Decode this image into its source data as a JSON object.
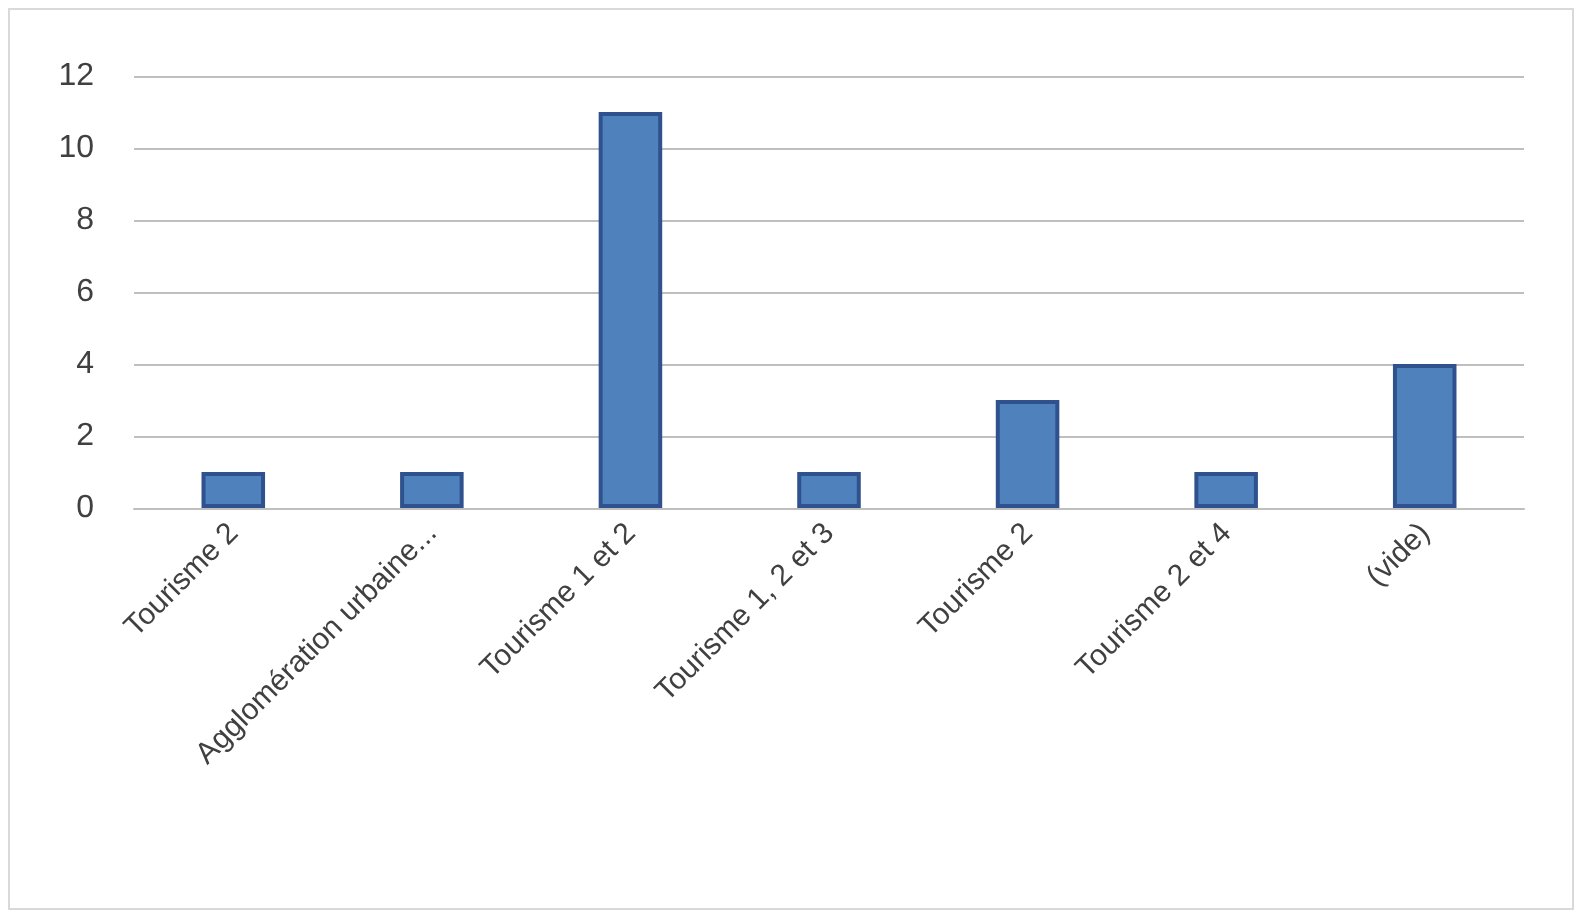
{
  "chart_data": {
    "type": "bar",
    "categories": [
      "Tourisme 2",
      "Agglomération urbaine...",
      "Tourisme 1 et 2",
      "Tourisme 1, 2 et 3",
      "Tourisme 2",
      "Tourisme 2 et 4",
      "(vide)"
    ],
    "values": [
      1,
      1,
      11,
      1,
      3,
      1,
      4
    ],
    "color": "#4f81bd",
    "ylim": [
      0,
      12
    ],
    "yticks": [
      0,
      2,
      4,
      6,
      8,
      10,
      12
    ],
    "grid": "y"
  }
}
